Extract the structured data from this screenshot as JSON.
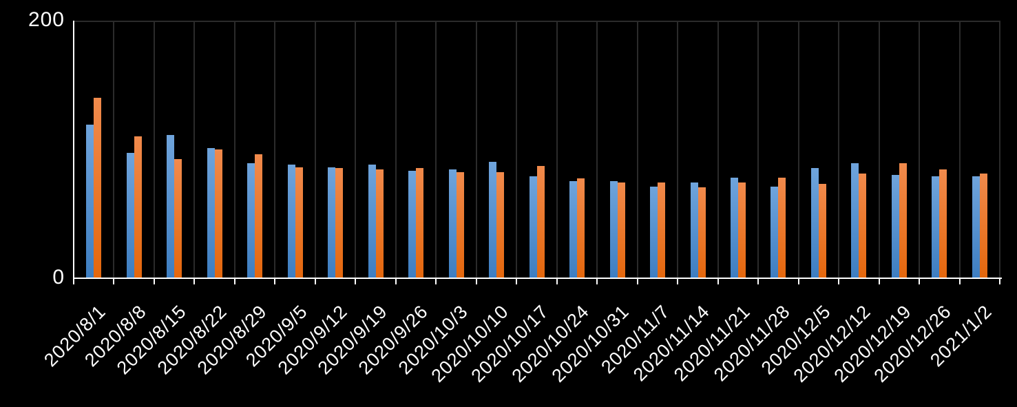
{
  "chart_data": {
    "type": "bar",
    "title": "",
    "xlabel": "",
    "ylabel": "",
    "legend": "none",
    "grid": "vertical-only",
    "ylim": [
      0,
      200
    ],
    "yticks": [
      0,
      200
    ],
    "categories": [
      "2020/8/1",
      "2020/8/8",
      "2020/8/15",
      "2020/8/22",
      "2020/8/29",
      "2020/9/5",
      "2020/9/12",
      "2020/9/19",
      "2020/9/26",
      "2020/10/3",
      "2020/10/10",
      "2020/10/17",
      "2020/10/24",
      "2020/10/31",
      "2020/11/7",
      "2020/11/14",
      "2020/11/21",
      "2020/11/28",
      "2020/12/5",
      "2020/12/12",
      "2020/12/19",
      "2020/12/26",
      "2021/1/2"
    ],
    "series": [
      {
        "name": "blue-series",
        "color": "#5B9BD5",
        "gradient_top": "#6FA4DC",
        "gradient_bottom": "#3E7EC1",
        "values": [
          119,
          97,
          111,
          101,
          89,
          88,
          86,
          88,
          83,
          84,
          90,
          79,
          75,
          75,
          71,
          74,
          78,
          71,
          85,
          89,
          80,
          79,
          79
        ]
      },
      {
        "name": "orange-series",
        "color": "#ED7D31",
        "gradient_top": "#F18A4C",
        "gradient_bottom": "#E4670D",
        "values": [
          140,
          110,
          92,
          100,
          96,
          86,
          85,
          84,
          85,
          82,
          82,
          87,
          77,
          74,
          74,
          70,
          74,
          78,
          73,
          81,
          89,
          84,
          81
        ]
      }
    ],
    "style": {
      "background": "#000000",
      "axis_color": "#FFFFFF",
      "gridline_color": "#2B2B2B",
      "label_color": "#FFFFFF"
    }
  }
}
